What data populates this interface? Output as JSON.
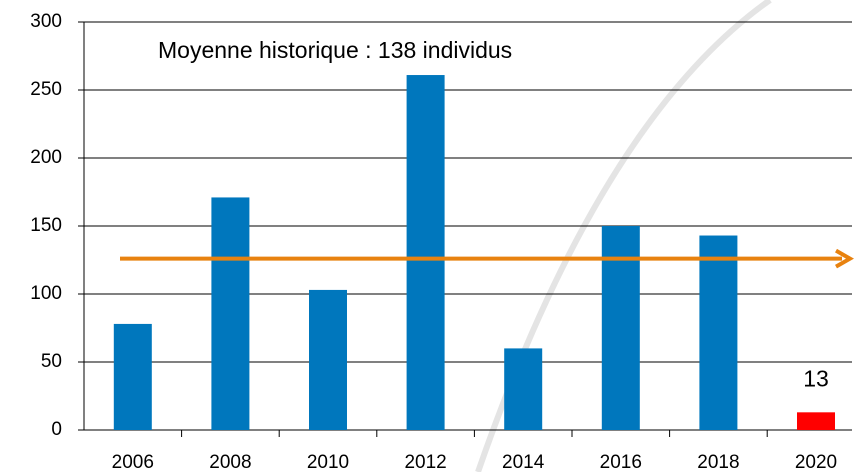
{
  "chart_data": {
    "type": "bar",
    "categories": [
      "2006",
      "2008",
      "2010",
      "2012",
      "2014",
      "2016",
      "2018",
      "2020"
    ],
    "values": [
      78,
      171,
      103,
      261,
      60,
      150,
      143,
      13
    ],
    "colors": [
      "#0077bd",
      "#0077bd",
      "#0077bd",
      "#0077bd",
      "#0077bd",
      "#0077bd",
      "#0077bd",
      "#ff0000"
    ],
    "show_value_label": [
      false,
      false,
      false,
      false,
      false,
      false,
      false,
      true
    ],
    "ylim": [
      0,
      300
    ],
    "yticks": [
      0,
      50,
      100,
      150,
      200,
      250,
      300
    ],
    "grid": true,
    "annotation": "Moyenne historique : 138 individus",
    "reference_line": {
      "value": 126,
      "color": "#e8820f"
    }
  }
}
